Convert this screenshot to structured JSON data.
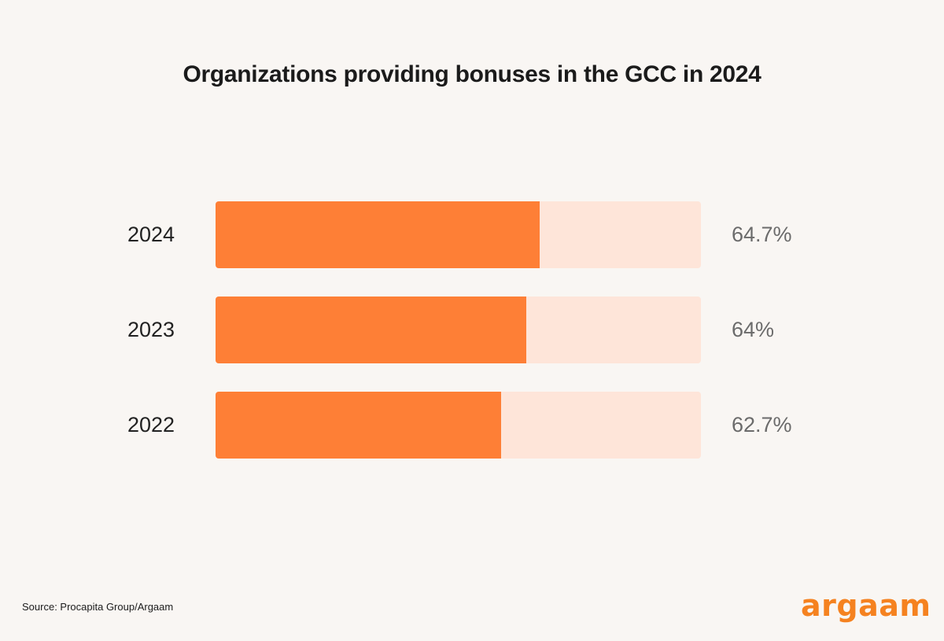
{
  "chart_data": {
    "type": "bar",
    "orientation": "horizontal",
    "title": "Organizations providing bonuses in the GCC in 2024",
    "categories": [
      "2024",
      "2023",
      "2022"
    ],
    "values": [
      64.7,
      64,
      62.7
    ],
    "value_labels": [
      "64.7%",
      "64%",
      "62.7%"
    ],
    "unit": "%",
    "xlabel": "",
    "ylabel": "",
    "xlim": [
      48,
      73
    ],
    "grid": false,
    "legend": "none",
    "colors": {
      "fill": "#fe7f36",
      "track": "#fee5d9"
    }
  },
  "footer": {
    "source": "Source: Procapita Group/Argaam",
    "logo": "argaam"
  },
  "colors": {
    "brand": "#f58220",
    "background": "#f9f6f3"
  }
}
